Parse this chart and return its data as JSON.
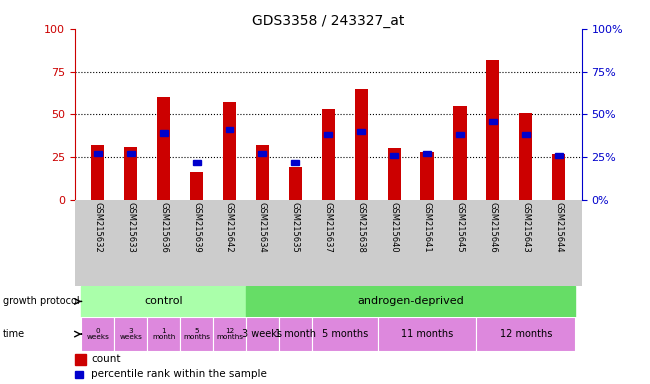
{
  "title": "GDS3358 / 243327_at",
  "samples": [
    "GSM215632",
    "GSM215633",
    "GSM215636",
    "GSM215639",
    "GSM215642",
    "GSM215634",
    "GSM215635",
    "GSM215637",
    "GSM215638",
    "GSM215640",
    "GSM215641",
    "GSM215645",
    "GSM215646",
    "GSM215643",
    "GSM215644"
  ],
  "count_values": [
    32,
    31,
    60,
    16,
    57,
    32,
    19,
    53,
    65,
    30,
    28,
    55,
    82,
    51,
    27
  ],
  "percentile_values": [
    27,
    27,
    39,
    22,
    41,
    27,
    22,
    38,
    40,
    26,
    27,
    38,
    46,
    38,
    26
  ],
  "bar_color": "#cc0000",
  "percentile_color": "#0000cc",
  "ylim": [
    0,
    100
  ],
  "y_ticks": [
    0,
    25,
    50,
    75,
    100
  ],
  "grid_values": [
    25,
    50,
    75
  ],
  "title_fontsize": 10,
  "left_axis_color": "#cc0000",
  "right_axis_color": "#0000cc",
  "control_indices": [
    0,
    1,
    2,
    3,
    4
  ],
  "androgen_indices": [
    5,
    6,
    7,
    8,
    9,
    10,
    11,
    12,
    13,
    14
  ],
  "control_color": "#aaffaa",
  "androgen_color": "#66dd66",
  "time_color": "#dd88dd",
  "control_times": [
    "0\nweeks",
    "3\nweeks",
    "1\nmonth",
    "5\nmonths",
    "12\nmonths"
  ],
  "androgen_times": [
    "3 weeks",
    "1 month",
    "5 months",
    "11 months",
    "12 months"
  ],
  "androgen_time_groups": [
    [
      5
    ],
    [
      6
    ],
    [
      7,
      8
    ],
    [
      9,
      10,
      11
    ],
    [
      12,
      13,
      14
    ]
  ],
  "bg_color": "#ffffff",
  "label_area_bg": "#cccccc"
}
